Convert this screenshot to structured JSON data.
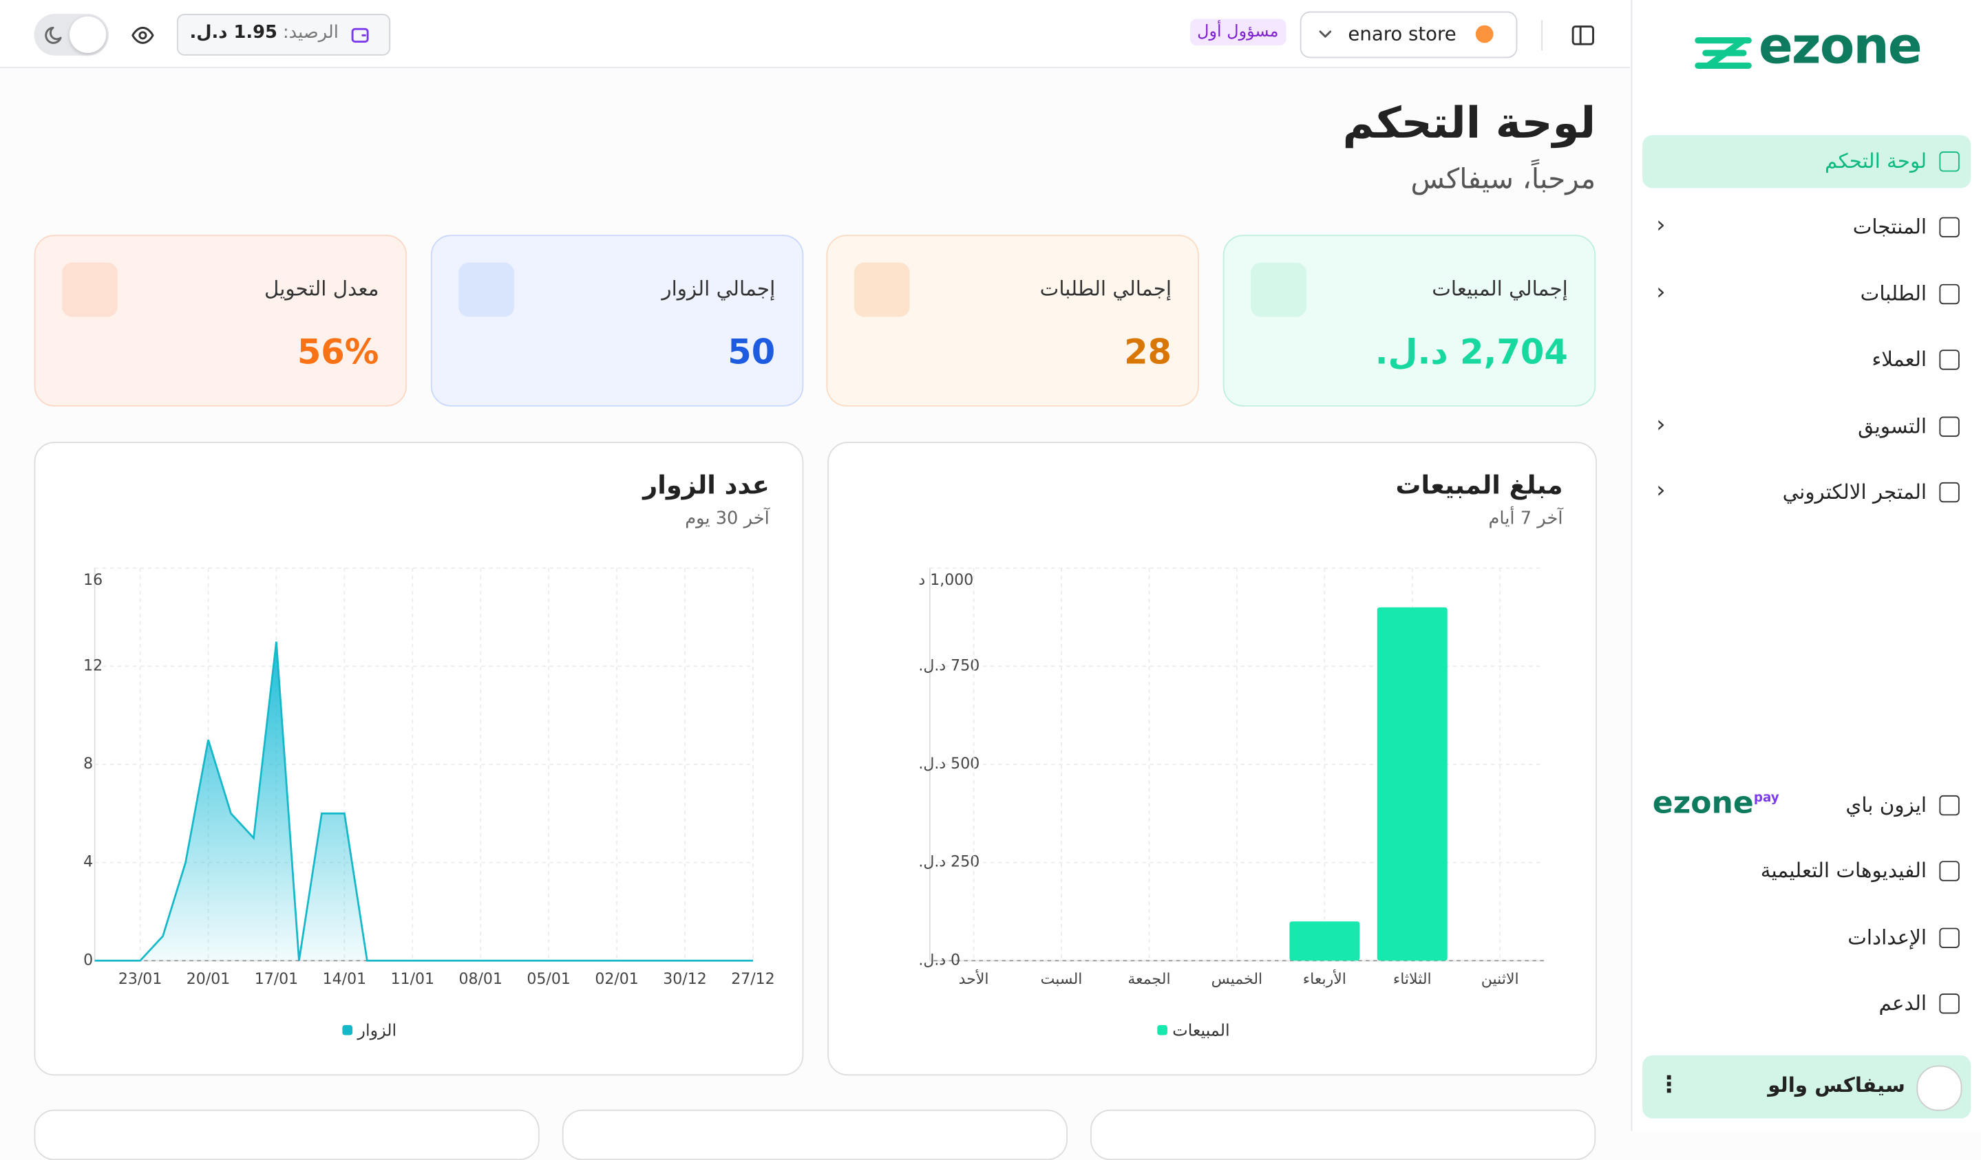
{
  "topbar": {
    "store": "enaro store",
    "role": "مسؤول أول",
    "balance_label": "الرصيد:",
    "balance": "1.95 د.ل."
  },
  "sidebar": {
    "logo": "ezone",
    "nav": [
      "لوحة التحكم",
      "المنتجات",
      "الطلبات",
      "العملاء",
      "التسويق",
      "المتجر الالكتروني"
    ],
    "pay_logo": "ezone",
    "pay_badge": "pay",
    "footer_nav": [
      "ايزون باي",
      "الفيديوهات التعليمية",
      "الإعدادات",
      "الدعم"
    ],
    "user": "سيفاكس والو"
  },
  "header": {
    "title": "لوحة التحكم",
    "greeting": "مرحباً، سيفاكس"
  },
  "stats": [
    {
      "label": "إجمالي المبيعات",
      "value": "2,704 د.ل."
    },
    {
      "label": "إجمالي الطلبات",
      "value": "28"
    },
    {
      "label": "إجمالي الزوار",
      "value": "50"
    },
    {
      "label": "معدل التحويل",
      "value": "56%"
    }
  ],
  "charts": [
    {
      "type": "bar",
      "title": "مبلغ المبيعات",
      "subtitle": "آخر 7 أيام",
      "categories": [
        "الأحد",
        "السبت",
        "الجمعة",
        "الخميس",
        "الأربعاء",
        "الثلاثاء",
        "الاثنين"
      ],
      "series": [
        {
          "name": "المبيعات",
          "color": "#17e8ad",
          "values": [
            0,
            0,
            0,
            0,
            100,
            900,
            0
          ]
        }
      ],
      "ylim": [
        0,
        1000
      ],
      "yticks": [
        {
          "value": 0,
          "label": "0 د.ل."
        },
        {
          "value": 250,
          "label": "250 د.ل."
        },
        {
          "value": 500,
          "label": "500 د.ل."
        },
        {
          "value": 750,
          "label": "750 د.ل."
        },
        {
          "value": 1000,
          "label": "1,000 د"
        }
      ],
      "grid": true
    },
    {
      "type": "area",
      "title": "عدد الزوار",
      "subtitle": "آخر 30 يوم",
      "categories": [
        null,
        null,
        "23/01",
        null,
        null,
        "20/01",
        null,
        null,
        "17/01",
        null,
        null,
        "14/01",
        null,
        null,
        "11/01",
        null,
        null,
        "08/01",
        null,
        null,
        "05/01",
        null,
        null,
        "02/01",
        null,
        null,
        "30/12",
        null,
        null,
        "27/12"
      ],
      "series": [
        {
          "name": "الزوار",
          "color": "#14b8c8",
          "values": [
            0,
            0,
            0,
            1,
            4,
            9,
            6,
            5,
            13,
            0,
            6,
            6,
            0,
            0,
            0,
            0,
            0,
            0,
            0,
            0,
            0,
            0,
            0,
            0,
            0,
            0,
            0,
            0,
            0,
            0
          ]
        }
      ],
      "ylim": [
        0,
        16
      ],
      "yticks": [
        0,
        4,
        8,
        12,
        16
      ],
      "grid": true
    }
  ]
}
